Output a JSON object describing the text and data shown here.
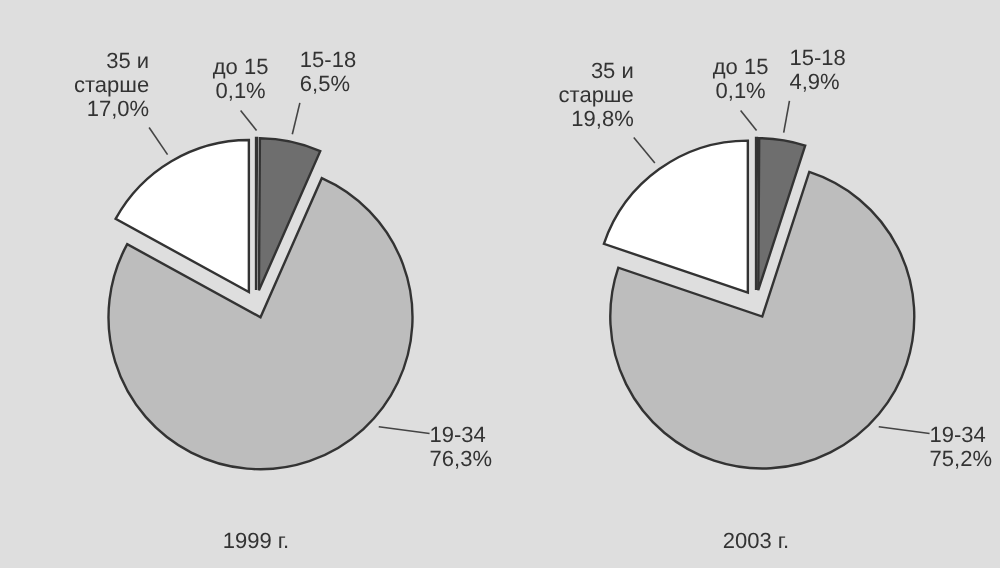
{
  "chart_data": [
    {
      "type": "pie",
      "title": "1999 г.",
      "categories": [
        "до 15",
        "15-18",
        "19-34",
        "35 и старше"
      ],
      "values": [
        0.1,
        6.5,
        76.3,
        17.0
      ],
      "value_labels": [
        "0,1%",
        "6,5%",
        "76,3%",
        "17,0%"
      ],
      "colors": [
        "#ffffff",
        "#6e6e6e",
        "#bdbdbd",
        "#ffffff"
      ]
    },
    {
      "type": "pie",
      "title": "2003 г.",
      "categories": [
        "до 15",
        "15-18",
        "19-34",
        "35 и старше"
      ],
      "values": [
        0.1,
        4.9,
        75.2,
        19.8
      ],
      "value_labels": [
        "0,1%",
        "4,9%",
        "75,2%",
        "19,8%"
      ],
      "colors": [
        "#ffffff",
        "#6e6e6e",
        "#bdbdbd",
        "#ffffff"
      ]
    }
  ]
}
